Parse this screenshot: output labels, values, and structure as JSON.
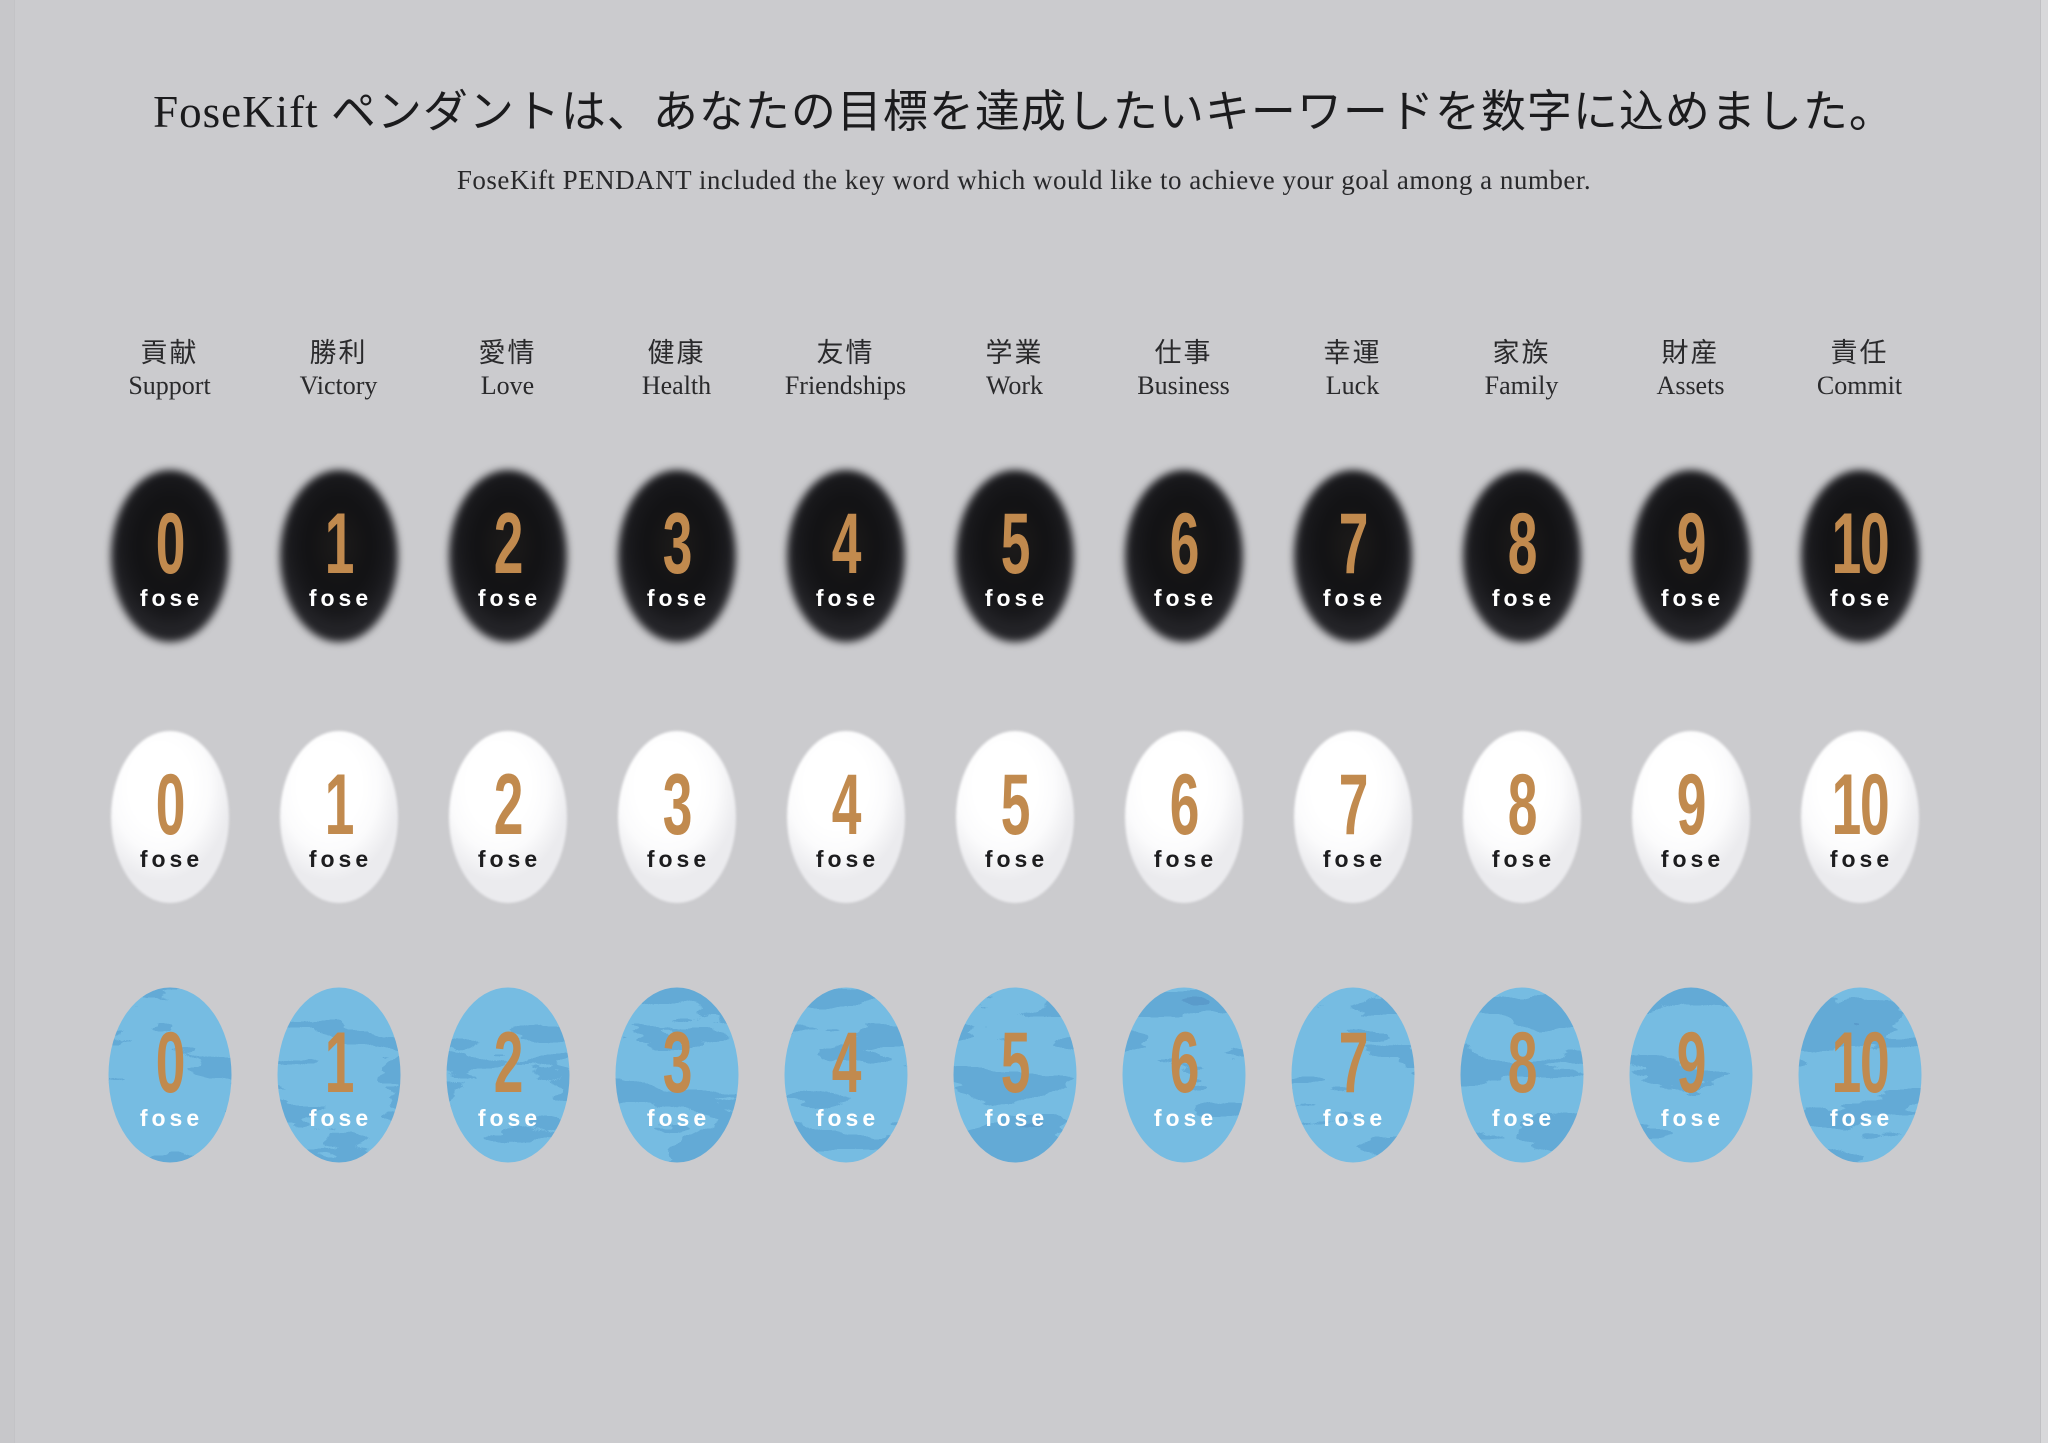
{
  "page": {
    "title": "FoseKift ペンダントは、あなたの目標を達成したいキーワードを数字に込めました。",
    "subtitle": "FoseKift PENDANT included the key word which would like to achieve your goal among a number."
  },
  "columns": [
    {
      "jp": "貢献",
      "en": "Support"
    },
    {
      "jp": "勝利",
      "en": "Victory"
    },
    {
      "jp": "愛情",
      "en": "Love"
    },
    {
      "jp": "健康",
      "en": "Health"
    },
    {
      "jp": "友情",
      "en": "Friendships"
    },
    {
      "jp": "学業",
      "en": "Work"
    },
    {
      "jp": "仕事",
      "en": "Business"
    },
    {
      "jp": "幸運",
      "en": "Luck"
    },
    {
      "jp": "家族",
      "en": "Family"
    },
    {
      "jp": "財産",
      "en": "Assets"
    },
    {
      "jp": "責任",
      "en": "Commit"
    }
  ],
  "numbers": [
    "0",
    "1",
    "2",
    "3",
    "4",
    "5",
    "6",
    "7",
    "8",
    "9",
    "10"
  ],
  "brand_label": "fose",
  "rows": [
    {
      "variant": "black"
    },
    {
      "variant": "white"
    },
    {
      "variant": "blue"
    }
  ],
  "colors": {
    "background": "#cbcbce",
    "text": "#1e1e20",
    "number_gold": "#c18a4e",
    "pendant_black": "#141416",
    "pendant_white": "#ffffff",
    "blue_dark": "#12407d",
    "blue_mid": "#1d5c9e",
    "blue_light": "#2f7fbe",
    "brand_on_dark": "#ffffff",
    "brand_on_light": "#1d1d1f"
  }
}
